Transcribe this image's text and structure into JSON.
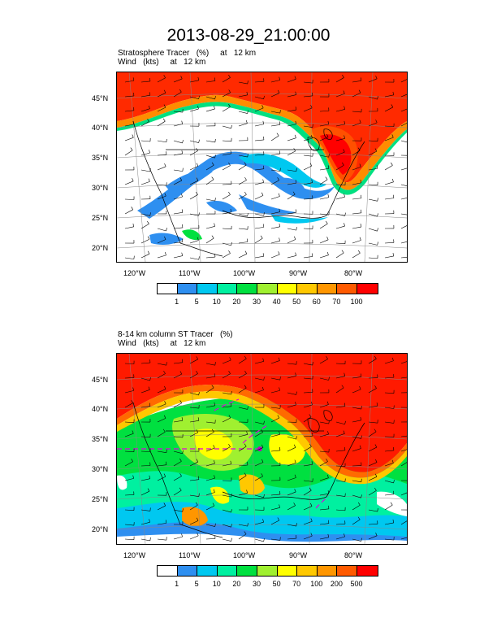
{
  "page": {
    "title": "2013-08-29_21:00:00"
  },
  "panels": [
    {
      "line1": "Stratosphere Tracer   (%)     at   12 km",
      "line2": "Wind   (kts)     at   12 km",
      "lat_labels": [
        "45°N",
        "40°N",
        "35°N",
        "30°N",
        "25°N",
        "20°N"
      ],
      "lon_labels": [
        "120°W",
        "110°W",
        "100°W",
        "90°W",
        "80°W"
      ],
      "colorbar": {
        "labels": [
          "1",
          "5",
          "10",
          "20",
          "30",
          "40",
          "50",
          "60",
          "70",
          "100"
        ],
        "colors": [
          "#ffffff",
          "#2e8ff0",
          "#00c8f0",
          "#00f0a0",
          "#00e040",
          "#a0f030",
          "#ffff00",
          "#ffc800",
          "#ff9600",
          "#ff5a00",
          "#ff0000"
        ]
      }
    },
    {
      "line1": "8-14 km column ST Tracer   (%)",
      "line2": "Wind   (kts)     at   12 km",
      "lat_labels": [
        "45°N",
        "40°N",
        "35°N",
        "30°N",
        "25°N",
        "20°N"
      ],
      "lon_labels": [
        "120°W",
        "110°W",
        "100°W",
        "90°W",
        "80°W"
      ],
      "colorbar": {
        "labels": [
          "1",
          "5",
          "10",
          "20",
          "30",
          "50",
          "70",
          "100",
          "200",
          "500"
        ],
        "colors": [
          "#ffffff",
          "#2e8ff0",
          "#00c8f0",
          "#00f0a0",
          "#00e040",
          "#a0f030",
          "#ffff00",
          "#ffc800",
          "#ff9600",
          "#ff5a00",
          "#ff0000"
        ]
      }
    }
  ]
}
